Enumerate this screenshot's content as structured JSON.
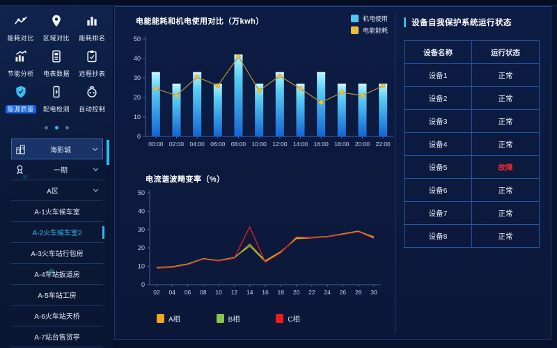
{
  "sidebar": {
    "menu": {
      "items": [
        {
          "label": "能耗对比",
          "icon": "trend-icon",
          "active": false
        },
        {
          "label": "区域对比",
          "icon": "map-pin-icon",
          "active": false
        },
        {
          "label": "能耗排名",
          "icon": "bar-chart-icon",
          "active": false
        },
        {
          "label": "节能分析",
          "icon": "analysis-icon",
          "active": false
        },
        {
          "label": "电表数据",
          "icon": "meter-icon",
          "active": false
        },
        {
          "label": "远程抄表",
          "icon": "clipboard-icon",
          "active": false
        },
        {
          "label": "能源质量",
          "icon": "shield-icon",
          "active": true
        },
        {
          "label": "配电检测",
          "icon": "detect-icon",
          "active": false
        },
        {
          "label": "自动控制",
          "icon": "control-icon",
          "active": false
        }
      ],
      "pagination": {
        "dots": 3,
        "active_index": 1
      }
    },
    "tree": {
      "items": [
        {
          "label": "海影城",
          "icon": "building-icon",
          "chevron": true,
          "header": true,
          "active": false
        },
        {
          "label": "一期",
          "icon": "medal-icon",
          "chevron": true,
          "header": false,
          "active": false
        },
        {
          "label": "A区",
          "icon": null,
          "chevron": true,
          "header": false,
          "active": false
        },
        {
          "label": "A-1火车候车室",
          "icon": null,
          "chevron": false,
          "header": false,
          "active": false
        },
        {
          "label": "A-2火车候车室2",
          "icon": null,
          "chevron": false,
          "header": false,
          "active": true
        },
        {
          "label": "A-3火车站行包房",
          "icon": null,
          "chevron": false,
          "header": false,
          "active": false
        },
        {
          "label": "A-4车站扳道房",
          "icon": null,
          "chevron": false,
          "header": false,
          "active": false
        },
        {
          "label": "A-5车站工房",
          "icon": null,
          "chevron": false,
          "header": false,
          "active": false
        },
        {
          "label": "A-6火车站天桥",
          "icon": null,
          "chevron": false,
          "header": false,
          "active": false
        },
        {
          "label": "A-7站台售货亭",
          "icon": null,
          "chevron": false,
          "header": false,
          "active": false
        }
      ]
    }
  },
  "chart_data": [
    {
      "type": "bar",
      "title": "电能能耗和机电使用对比（万kwh）",
      "categories": [
        "00:00",
        "02:00",
        "04:00",
        "06:00",
        "08:00",
        "10:00",
        "12:00",
        "14:00",
        "16:00",
        "18:00",
        "20:00",
        "22:00"
      ],
      "series": [
        {
          "name": "机电使用",
          "type": "bar",
          "color": "#4fc8f5",
          "values": [
            33,
            27,
            33,
            27,
            42,
            27,
            33,
            27,
            33,
            27,
            27,
            27
          ]
        },
        {
          "name": "电能能耗",
          "type": "line",
          "color": "#e9bc3e",
          "values": [
            24.5,
            21,
            30.5,
            26,
            41,
            23.5,
            31,
            24.5,
            17.5,
            22.5,
            21,
            26
          ]
        }
      ],
      "xlabel": "",
      "ylabel": "",
      "ylim": [
        0,
        50
      ],
      "yticks": [
        0,
        10,
        20,
        30,
        40,
        50
      ],
      "grid": false,
      "legend_position": "top-right"
    },
    {
      "type": "line",
      "title": "电流谐波畸变率（%）",
      "categories": [
        "02",
        "04",
        "06",
        "08",
        "10",
        "12",
        "14",
        "16",
        "18",
        "20",
        "22",
        "24",
        "26",
        "28",
        "30"
      ],
      "series": [
        {
          "name": "A相",
          "color": "#f5a41e",
          "values": [
            9,
            9.5,
            11,
            14,
            13,
            14.5,
            22,
            13,
            18,
            25,
            25.5,
            26,
            27.5,
            29,
            26
          ]
        },
        {
          "name": "B相",
          "color": "#8bc34a",
          "values": [
            9.3,
            9.8,
            11.3,
            14.2,
            13.2,
            14.8,
            21,
            12.6,
            17.7,
            25.4,
            25.8,
            26.2,
            27.7,
            29.2,
            25.6
          ]
        },
        {
          "name": "C相",
          "color": "#ef1c1c",
          "values": [
            9,
            9.4,
            10.9,
            13.9,
            12.9,
            14.4,
            31.5,
            12.2,
            17.4,
            26,
            25.6,
            26,
            27.3,
            28.8,
            25.2
          ]
        }
      ],
      "xlabel": "",
      "ylabel": "",
      "ylim": [
        0,
        50
      ],
      "yticks": [
        0,
        10,
        20,
        30,
        40,
        50
      ],
      "grid": false,
      "legend_position": "bottom"
    }
  ],
  "right_panel": {
    "title": "设备自我保护系统运行状态",
    "table": {
      "headers": [
        "设备名称",
        "运行状态"
      ],
      "rows": [
        {
          "name": "设备1",
          "status": "正常",
          "fault": false
        },
        {
          "name": "设备2",
          "status": "正常",
          "fault": false
        },
        {
          "name": "设备3",
          "status": "正常",
          "fault": false
        },
        {
          "name": "设备4",
          "status": "正常",
          "fault": false
        },
        {
          "name": "设备5",
          "status": "故障",
          "fault": true
        },
        {
          "name": "设备6",
          "status": "正常",
          "fault": false
        },
        {
          "name": "设备7",
          "status": "正常",
          "fault": false
        },
        {
          "name": "设备8",
          "status": "正常",
          "fault": false
        }
      ]
    }
  },
  "colors": {
    "accent_cyan": "#2fb9f2",
    "fault_red": "#e62c2c",
    "bar_gradient_top": "#b7f6ff",
    "bar_gradient_bottom": "#1365d4",
    "line_yellow": "#ab8d33",
    "axis": "#41619f",
    "axis_label": "#c9d5ea"
  }
}
